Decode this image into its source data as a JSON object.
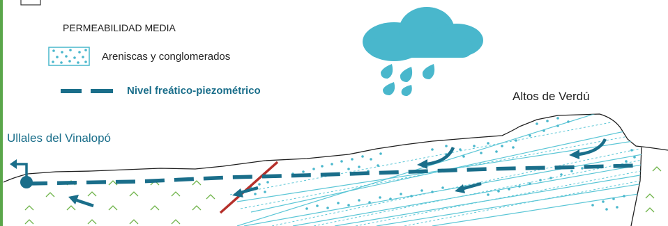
{
  "legend": {
    "permeability_heading": "PERMEABILIDAD MEDIA",
    "sandstone_label": "Areniscas y conglomerados",
    "water_table_label": "Nivel freático-piezométrico"
  },
  "places": {
    "spring_label": "Ullales del Vinalopó",
    "highland_label": "Altos de Verdú"
  },
  "colors": {
    "teal": "#1a6e8a",
    "aquifer_line": "#5bc6d6",
    "dots": "#49b7cc",
    "fault": "#b5302b",
    "marl": "#6fb44a",
    "cloud": "#49b7cc",
    "border_green": "#5aa64a"
  }
}
